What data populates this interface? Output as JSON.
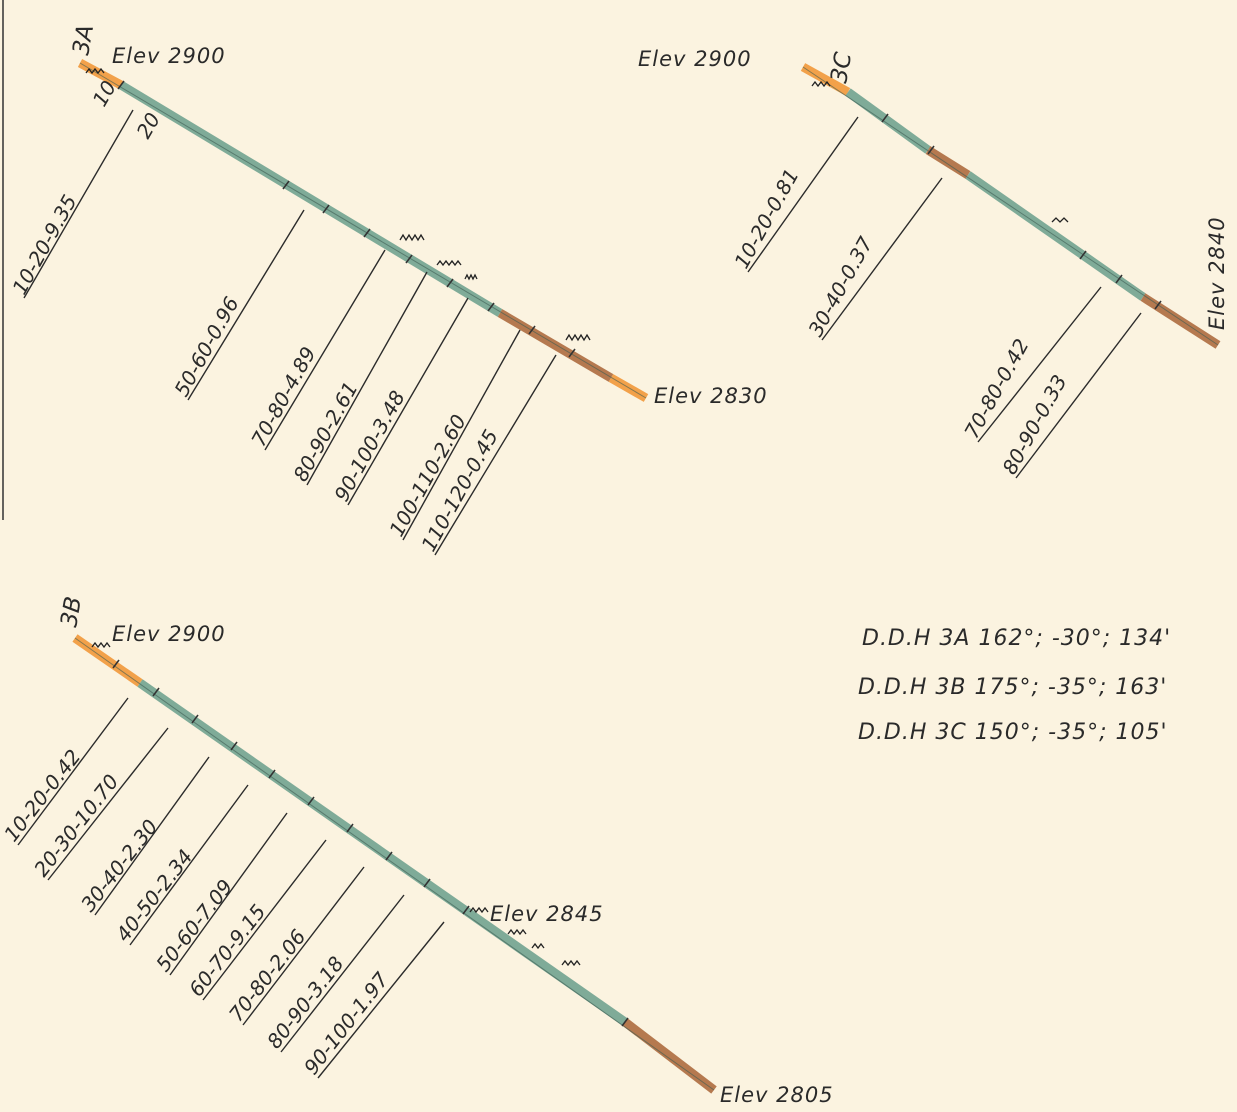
{
  "holes": [
    {
      "id": "3A",
      "top_elev": "Elev 2900",
      "bottom_elev": "Elev 2830",
      "depth_marks": [
        "10",
        "20"
      ],
      "assays": [
        "10-20-9.35",
        "50-60-0.96",
        "70-80-4.89",
        "80-90-2.61",
        "90-100-3.48",
        "100-110-2.60",
        "110-120-0.45"
      ]
    },
    {
      "id": "3B",
      "top_elev": "Elev 2900",
      "mid_elev": "Elev 2845",
      "bottom_elev": "Elev 2805",
      "assays": [
        "10-20-0.42",
        "20-30-10.70",
        "30-40-2.30",
        "40-50-2.34",
        "50-60-7.09",
        "60-70-9.15",
        "70-80-2.06",
        "80-90-3.18",
        "90-100-1.97"
      ]
    },
    {
      "id": "3C",
      "top_elev": "Elev 2900",
      "bottom_elev": "Elev 2840",
      "assays": [
        "10-20-0.81",
        "30-40-0.37",
        "70-80-0.42",
        "80-90-0.33"
      ]
    }
  ],
  "legend": [
    "D.D.H 3A  162°; -30°; 134'",
    "D.D.H 3B  175°; -35°; 163'",
    "D.D.H 3C  150°; -35°; 105'"
  ],
  "colors": {
    "paper": "#fbf3e0",
    "oxide": "#f2a14a",
    "altered": "#b5794f",
    "sulfide": "#7fab98",
    "ink": "#2a2a2a"
  }
}
